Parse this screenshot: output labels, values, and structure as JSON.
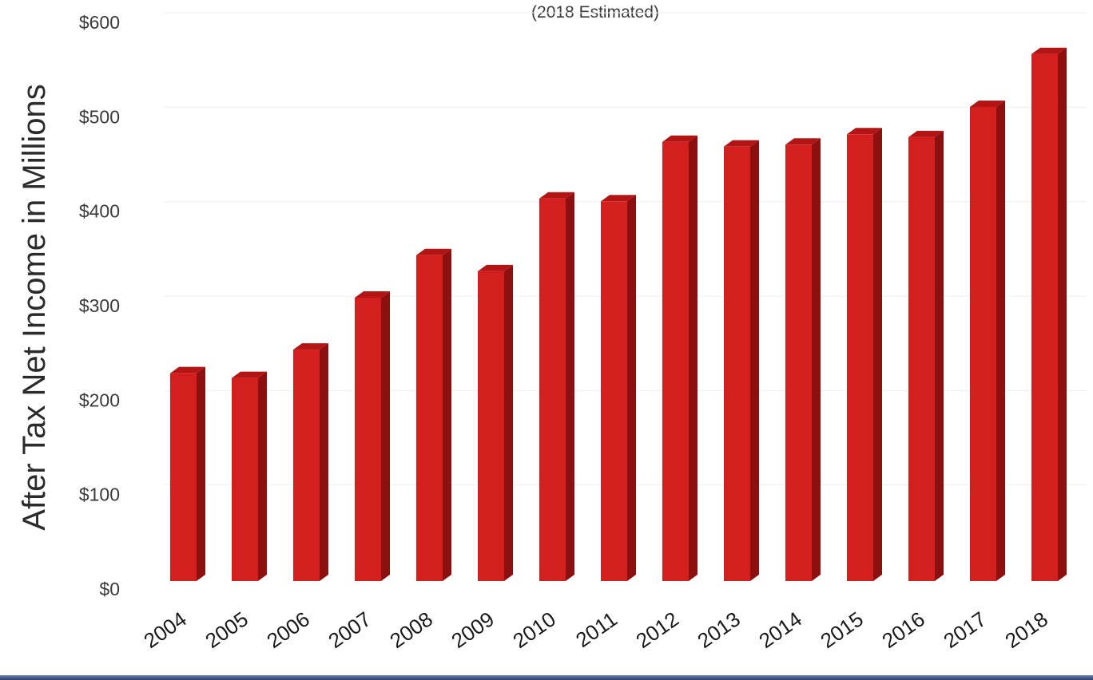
{
  "chart_data": {
    "type": "bar",
    "subtitle": "(2018 Estimated)",
    "ylabel": "After Tax Net Income in Millions",
    "xlabel": "",
    "categories": [
      "2004",
      "2005",
      "2006",
      "2007",
      "2008",
      "2009",
      "2010",
      "2011",
      "2012",
      "2013",
      "2014",
      "2015",
      "2016",
      "2017",
      "2018"
    ],
    "values": [
      220,
      215,
      245,
      300,
      345,
      328,
      405,
      402,
      465,
      460,
      462,
      473,
      470,
      502,
      558
    ],
    "ylim": [
      0,
      600
    ],
    "y_ticks": [
      "$0",
      "$100",
      "$200",
      "$300",
      "$400",
      "$500",
      "$600"
    ],
    "y_tick_values": [
      0,
      100,
      200,
      300,
      400,
      500,
      600
    ],
    "grid": true,
    "bar_style": "3d",
    "colors": {
      "bar_front": "#d41f1f",
      "bar_side": "#8c1010",
      "bar_top": "#b31515"
    }
  }
}
